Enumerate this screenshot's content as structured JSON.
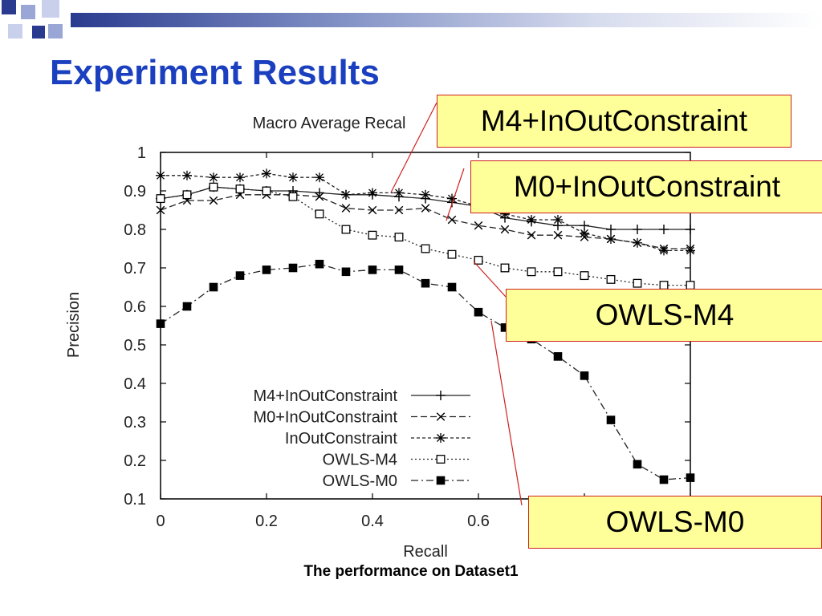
{
  "slide": {
    "title": "Experiment Results",
    "caption": "The performance on Dataset1"
  },
  "callouts": [
    {
      "id": "m4io",
      "label": "M4+InOutConstraint"
    },
    {
      "id": "m0io",
      "label": "M0+InOutConstraint"
    },
    {
      "id": "owlsm4",
      "label": "OWLS-M4"
    },
    {
      "id": "owlsm0",
      "label": "OWLS-M0"
    }
  ],
  "colors": {
    "title": "#1a3fbf",
    "callout_fill": "#ffff99",
    "callout_border": "#d02020",
    "pointer_line": "#d02020",
    "series": "#000000",
    "deco_dark": "#2a3a8f",
    "deco_light": "#9aa6d6"
  },
  "chart_data": {
    "type": "line",
    "title": "Macro Average Recal",
    "xlabel": "Recall",
    "ylabel": "Precision",
    "xlim": [
      0,
      1
    ],
    "ylim": [
      0.1,
      1
    ],
    "x_ticks": [
      "0",
      "0.2",
      "0.4",
      "0.6"
    ],
    "y_ticks": [
      "0.1",
      "0.2",
      "0.3",
      "0.4",
      "0.5",
      "0.6",
      "0.7",
      "0.8",
      "0.9",
      "1"
    ],
    "grid": false,
    "legend_position": "bottom-right",
    "x": [
      0,
      0.05,
      0.1,
      0.15,
      0.2,
      0.25,
      0.3,
      0.35,
      0.4,
      0.45,
      0.5,
      0.55,
      0.6,
      0.65,
      0.7,
      0.75,
      0.8,
      0.85,
      0.9,
      0.95,
      1.0
    ],
    "series": [
      {
        "name": "M4+InOutConstraint",
        "marker": "plus",
        "dash": "solid",
        "values": [
          0.88,
          0.89,
          0.91,
          0.905,
          0.9,
          0.9,
          0.895,
          0.89,
          0.89,
          0.885,
          0.88,
          0.87,
          0.86,
          0.83,
          0.82,
          0.81,
          0.81,
          0.8,
          0.8,
          0.8,
          0.8
        ]
      },
      {
        "name": "M0+InOutConstraint",
        "marker": "x",
        "dash": "dashed",
        "values": [
          0.85,
          0.875,
          0.875,
          0.89,
          0.89,
          0.89,
          0.885,
          0.855,
          0.85,
          0.85,
          0.855,
          0.825,
          0.81,
          0.8,
          0.785,
          0.785,
          0.78,
          0.775,
          0.765,
          0.75,
          0.75
        ]
      },
      {
        "name": "InOutConstraint",
        "marker": "star",
        "dash": "dashed-fine",
        "values": [
          0.94,
          0.94,
          0.935,
          0.935,
          0.945,
          0.935,
          0.935,
          0.89,
          0.895,
          0.895,
          0.89,
          0.88,
          0.86,
          0.84,
          0.825,
          0.825,
          0.79,
          0.775,
          0.765,
          0.745,
          0.745
        ]
      },
      {
        "name": "OWLS-M4",
        "marker": "square-open",
        "dash": "dotted",
        "values": [
          0.88,
          0.89,
          0.91,
          0.905,
          0.9,
          0.885,
          0.84,
          0.8,
          0.785,
          0.78,
          0.75,
          0.735,
          0.72,
          0.7,
          0.69,
          0.69,
          0.68,
          0.67,
          0.66,
          0.655,
          0.655
        ]
      },
      {
        "name": "OWLS-M0",
        "marker": "square-filled",
        "dash": "dash-dot",
        "values": [
          0.555,
          0.6,
          0.65,
          0.68,
          0.695,
          0.7,
          0.71,
          0.69,
          0.695,
          0.695,
          0.66,
          0.65,
          0.585,
          0.545,
          0.515,
          0.47,
          0.42,
          0.305,
          0.19,
          0.15,
          0.155
        ]
      }
    ]
  }
}
